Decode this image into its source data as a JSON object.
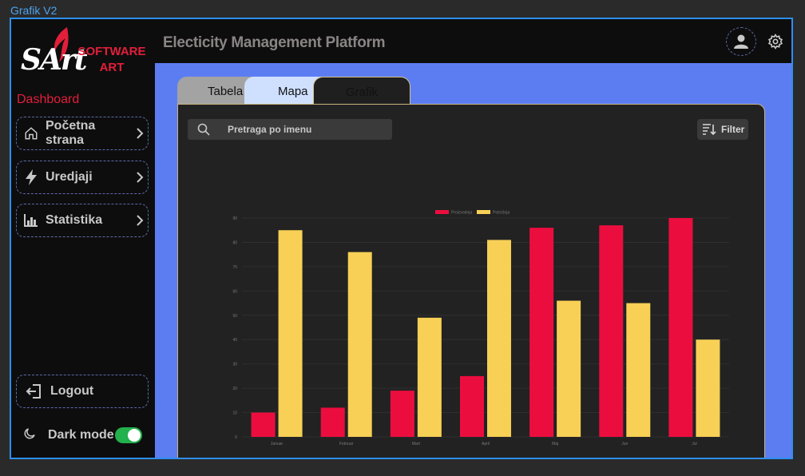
{
  "frame": {
    "label": "Grafik V2"
  },
  "logo": {
    "mark": "SArt",
    "line1": "SOFTWARE",
    "line2": "ART"
  },
  "sidebar": {
    "section_label": "Dashboard",
    "items": [
      {
        "label": "Početna strana",
        "icon": "home-icon"
      },
      {
        "label": "Uredjaji",
        "icon": "lightning-icon"
      },
      {
        "label": "Statistika",
        "icon": "bar-chart-icon"
      }
    ],
    "logout_label": "Logout",
    "dark_mode_label": "Dark mode",
    "dark_mode_on": true
  },
  "header": {
    "title": "Electicity Management Platform"
  },
  "tabs": [
    {
      "label": "Tabela"
    },
    {
      "label": "Mapa"
    },
    {
      "label": "Grafik",
      "active": true
    }
  ],
  "search": {
    "placeholder": "Pretraga po imenu"
  },
  "filter": {
    "label": "Filter"
  },
  "colors": {
    "accent": "#e21f3a",
    "series_red": "#ec0d3f",
    "series_yellow": "#f7d055",
    "background_blue": "#5c7df2"
  },
  "chart_data": {
    "type": "bar",
    "categories": [
      "Januar",
      "Februar",
      "Mart",
      "April",
      "Maj",
      "Jun",
      "Jul"
    ],
    "series": [
      {
        "name": "Proizvodnja",
        "color": "#ec0d3f",
        "values": [
          10,
          12,
          19,
          25,
          86,
          87,
          90
        ]
      },
      {
        "name": "Potrošnja",
        "color": "#f7d055",
        "values": [
          85,
          76,
          49,
          81,
          56,
          55,
          40
        ]
      }
    ],
    "ylim": [
      0,
      90
    ],
    "yticks": [
      0,
      10,
      20,
      30,
      40,
      50,
      60,
      70,
      80,
      90
    ],
    "legend": "top",
    "grid": true
  }
}
